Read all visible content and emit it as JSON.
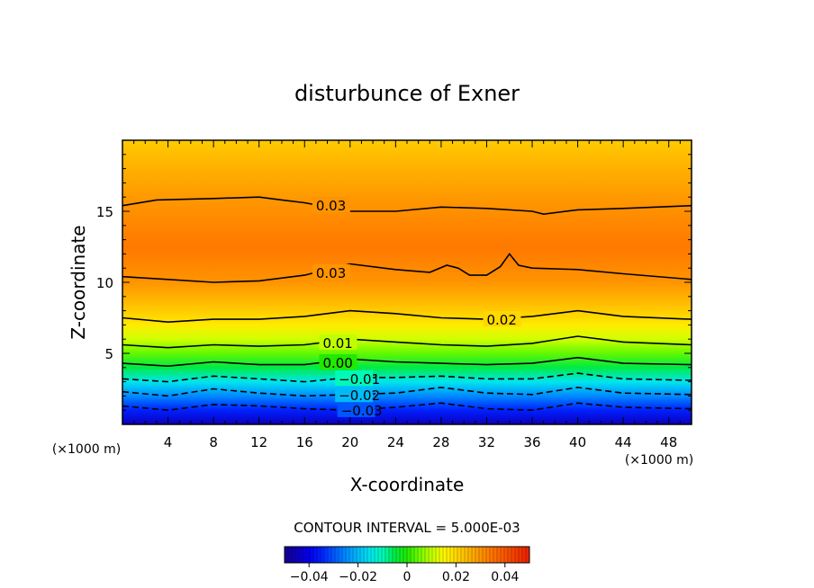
{
  "chart_data": {
    "type": "heatmap",
    "title": "disturbunce of Exner",
    "xlabel": "X-coordinate",
    "ylabel": "Z-coordinate",
    "x_unit_left": "(×1000 m)",
    "x_unit_right": "(×1000 m)",
    "xlim": [
      0,
      50
    ],
    "ylim": [
      0,
      20
    ],
    "x_ticks": [
      4,
      8,
      12,
      16,
      20,
      24,
      28,
      32,
      36,
      40,
      44,
      48
    ],
    "y_ticks": [
      5,
      10,
      15
    ],
    "grid": false,
    "contour_interval_text": "CONTOUR INTERVAL = 5.000E-03",
    "color_range": [
      -0.05,
      0.05
    ],
    "colorbar_ticks": [
      {
        "value": -0.04,
        "label": "−0.04"
      },
      {
        "value": -0.02,
        "label": "−0.02"
      },
      {
        "value": 0,
        "label": "0"
      },
      {
        "value": 0.02,
        "label": "0.02"
      },
      {
        "value": 0.04,
        "label": "0.04"
      }
    ],
    "field_profile": [
      {
        "z": 0.0,
        "value": -0.045
      },
      {
        "z": 1.0,
        "value": -0.035
      },
      {
        "z": 2.0,
        "value": -0.025
      },
      {
        "z": 3.0,
        "value": -0.015
      },
      {
        "z": 4.0,
        "value": -0.005
      },
      {
        "z": 5.0,
        "value": 0.004
      },
      {
        "z": 6.0,
        "value": 0.011
      },
      {
        "z": 7.0,
        "value": 0.017
      },
      {
        "z": 8.0,
        "value": 0.022
      },
      {
        "z": 9.0,
        "value": 0.026
      },
      {
        "z": 10.0,
        "value": 0.03
      },
      {
        "z": 12.5,
        "value": 0.034
      },
      {
        "z": 15.5,
        "value": 0.03
      },
      {
        "z": 18.0,
        "value": 0.026
      },
      {
        "z": 20.0,
        "value": 0.022
      }
    ],
    "contours": [
      {
        "level": -0.03,
        "label": "−0.03",
        "label_x": 19.2,
        "dashed": true,
        "points": [
          [
            0,
            1.3
          ],
          [
            4,
            1.0
          ],
          [
            8,
            1.4
          ],
          [
            12,
            1.3
          ],
          [
            16,
            1.1
          ],
          [
            20,
            1.0
          ],
          [
            24,
            1.2
          ],
          [
            28,
            1.5
          ],
          [
            32,
            1.1
          ],
          [
            36,
            1.0
          ],
          [
            40,
            1.5
          ],
          [
            44,
            1.2
          ],
          [
            50,
            1.1
          ]
        ]
      },
      {
        "level": -0.02,
        "label": "−0.02",
        "label_x": 19.0,
        "dashed": true,
        "points": [
          [
            0,
            2.3
          ],
          [
            4,
            2.0
          ],
          [
            8,
            2.5
          ],
          [
            12,
            2.2
          ],
          [
            16,
            2.0
          ],
          [
            20,
            2.1
          ],
          [
            24,
            2.2
          ],
          [
            28,
            2.6
          ],
          [
            32,
            2.2
          ],
          [
            36,
            2.1
          ],
          [
            40,
            2.6
          ],
          [
            44,
            2.2
          ],
          [
            50,
            2.1
          ]
        ]
      },
      {
        "level": -0.01,
        "label": "−0.01",
        "label_x": 19.0,
        "dashed": true,
        "points": [
          [
            0,
            3.2
          ],
          [
            4,
            3.0
          ],
          [
            8,
            3.4
          ],
          [
            12,
            3.2
          ],
          [
            16,
            3.0
          ],
          [
            20,
            3.3
          ],
          [
            24,
            3.3
          ],
          [
            28,
            3.4
          ],
          [
            32,
            3.2
          ],
          [
            36,
            3.2
          ],
          [
            40,
            3.6
          ],
          [
            44,
            3.2
          ],
          [
            50,
            3.1
          ]
        ]
      },
      {
        "level": 0.0,
        "label": "0.00",
        "label_x": 17.6,
        "dashed": false,
        "points": [
          [
            0,
            4.3
          ],
          [
            4,
            4.1
          ],
          [
            8,
            4.4
          ],
          [
            12,
            4.2
          ],
          [
            16,
            4.2
          ],
          [
            20,
            4.6
          ],
          [
            24,
            4.4
          ],
          [
            28,
            4.3
          ],
          [
            32,
            4.2
          ],
          [
            36,
            4.3
          ],
          [
            40,
            4.7
          ],
          [
            44,
            4.3
          ],
          [
            50,
            4.2
          ]
        ]
      },
      {
        "level": 0.01,
        "label": "0.01",
        "label_x": 17.6,
        "dashed": false,
        "points": [
          [
            0,
            5.6
          ],
          [
            4,
            5.4
          ],
          [
            8,
            5.6
          ],
          [
            12,
            5.5
          ],
          [
            16,
            5.6
          ],
          [
            20,
            6.0
          ],
          [
            24,
            5.8
          ],
          [
            28,
            5.6
          ],
          [
            32,
            5.5
          ],
          [
            36,
            5.7
          ],
          [
            40,
            6.2
          ],
          [
            44,
            5.8
          ],
          [
            50,
            5.6
          ]
        ]
      },
      {
        "level": 0.02,
        "label": "0.02",
        "label_x": 32.0,
        "dashed": false,
        "points": [
          [
            0,
            7.5
          ],
          [
            4,
            7.2
          ],
          [
            8,
            7.4
          ],
          [
            12,
            7.4
          ],
          [
            16,
            7.6
          ],
          [
            20,
            8.0
          ],
          [
            24,
            7.8
          ],
          [
            28,
            7.5
          ],
          [
            32,
            7.4
          ],
          [
            36,
            7.6
          ],
          [
            40,
            8.0
          ],
          [
            44,
            7.6
          ],
          [
            50,
            7.4
          ]
        ]
      },
      {
        "level": 0.03,
        "label": "0.03",
        "label_x": 17.0,
        "dashed": false,
        "points": [
          [
            0,
            10.4
          ],
          [
            4,
            10.2
          ],
          [
            8,
            10.0
          ],
          [
            12,
            10.1
          ],
          [
            16,
            10.5
          ],
          [
            20,
            11.3
          ],
          [
            24,
            10.9
          ],
          [
            27,
            10.7
          ],
          [
            28.5,
            11.2
          ],
          [
            29.5,
            11.0
          ],
          [
            30.5,
            10.5
          ],
          [
            32,
            10.5
          ],
          [
            33.2,
            11.1
          ],
          [
            34,
            12.0
          ],
          [
            34.8,
            11.2
          ],
          [
            36,
            11.0
          ],
          [
            40,
            10.9
          ],
          [
            44,
            10.6
          ],
          [
            50,
            10.2
          ]
        ]
      },
      {
        "level": 0.03,
        "label": "0.03",
        "label_x": 17.0,
        "dashed": false,
        "points": [
          [
            0,
            15.4
          ],
          [
            3,
            15.8
          ],
          [
            8,
            15.9
          ],
          [
            12,
            16.0
          ],
          [
            14,
            15.8
          ],
          [
            16,
            15.6
          ],
          [
            20,
            15.0
          ],
          [
            24,
            15.0
          ],
          [
            28,
            15.3
          ],
          [
            32,
            15.2
          ],
          [
            36,
            15.0
          ],
          [
            37,
            14.8
          ],
          [
            40,
            15.1
          ],
          [
            44,
            15.2
          ],
          [
            50,
            15.4
          ]
        ]
      }
    ]
  }
}
